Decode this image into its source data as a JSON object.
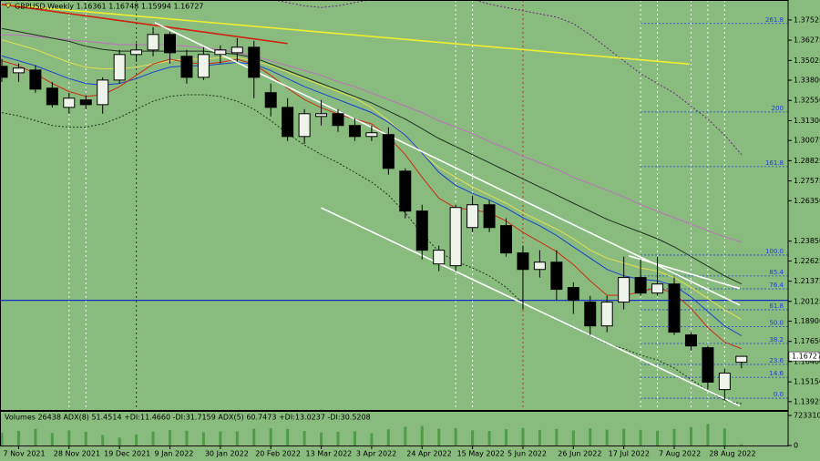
{
  "chart_data": [
    {
      "type": "candlestick",
      "title": "GBPUSD,Weekly  1.16361 1.16748 1.15994 1.16727",
      "categories": [
        null,
        "7 Nov 2021",
        null,
        null,
        "28 Nov 2021",
        null,
        null,
        "19 Dec 2021",
        null,
        null,
        "9 Jan 2022",
        null,
        null,
        "30 Jan 2022",
        null,
        null,
        "20 Feb 2022",
        null,
        null,
        "13 Mar 2022",
        null,
        null,
        "3 Apr 2022",
        null,
        null,
        "24 Apr 2022",
        null,
        null,
        "15 May 2022",
        null,
        null,
        "5 Jun 2022",
        null,
        null,
        "26 Jun 2022",
        null,
        null,
        "17 Jul 2022",
        null,
        null,
        "7 Aug 2022",
        null,
        null,
        "28 Aug 2022",
        null
      ],
      "open": [
        1.3466,
        1.3426,
        1.3443,
        1.3331,
        1.3212,
        1.3258,
        1.3229,
        1.3381,
        1.3539,
        1.3567,
        1.3663,
        1.3528,
        1.3398,
        1.3539,
        1.355,
        1.3584,
        1.3303,
        1.3212,
        1.3032,
        1.3156,
        1.3173,
        1.31,
        1.3032,
        1.3044,
        1.2818,
        1.2571,
        1.2244,
        1.2233,
        1.2469,
        1.261,
        1.2481,
        1.2312,
        1.221,
        1.2255,
        1.2098,
        1.2008,
        1.1861,
        1.2008,
        1.216,
        1.2064,
        1.212,
        1.1805,
        1.1726,
        1.1467,
        1.16361
      ],
      "high": [
        1.3511,
        1.3483,
        1.3472,
        1.337,
        1.3303,
        1.3286,
        1.3398,
        1.3567,
        1.3607,
        1.3708,
        1.368,
        1.3567,
        1.3584,
        1.3595,
        1.364,
        1.3623,
        1.3359,
        1.3269,
        1.3201,
        1.3258,
        1.3201,
        1.3145,
        1.31,
        1.3089,
        1.2835,
        1.261,
        1.2357,
        1.261,
        1.2666,
        1.2638,
        1.2526,
        1.2357,
        1.2329,
        1.2329,
        1.2131,
        1.2047,
        1.2047,
        1.2289,
        1.2272,
        1.2289,
        1.216,
        1.1822,
        1.1737,
        1.1597,
        1.16748
      ],
      "low": [
        1.337,
        1.337,
        1.3303,
        1.3212,
        1.3173,
        1.3201,
        1.3173,
        1.3359,
        1.3494,
        1.3528,
        1.3483,
        1.3359,
        1.3381,
        1.3483,
        1.3494,
        1.3269,
        1.3156,
        1.3004,
        1.2987,
        1.31,
        1.3061,
        1.3004,
        1.3004,
        1.2796,
        1.2526,
        1.2272,
        1.2199,
        1.2199,
        1.2441,
        1.2441,
        1.2289,
        1.1963,
        1.216,
        1.2019,
        1.1935,
        1.1805,
        1.1822,
        1.1963,
        1.2047,
        1.2047,
        1.1805,
        1.1709,
        1.1467,
        1.14,
        1.15994
      ],
      "close": [
        1.3398,
        1.3455,
        1.3325,
        1.3229,
        1.3269,
        1.3229,
        1.3381,
        1.3539,
        1.3567,
        1.3663,
        1.355,
        1.3398,
        1.3539,
        1.3567,
        1.3584,
        1.3398,
        1.3212,
        1.3032,
        1.3173,
        1.3173,
        1.31,
        1.3032,
        1.3055,
        1.2835,
        1.2571,
        1.2329,
        1.2329,
        1.2593,
        1.261,
        1.2469,
        1.2312,
        1.221,
        1.2255,
        1.2087,
        1.2019,
        1.1861,
        1.2008,
        1.216,
        1.2064,
        1.212,
        1.1822,
        1.1737,
        1.1513,
        1.1569,
        1.16727
      ],
      "up_color": "#eef4ea",
      "down_color": "#000000",
      "series": [
        {
          "color": "#6a2a80",
          "dash": true,
          "values": [
            null,
            null,
            null,
            null,
            null,
            null,
            null,
            null,
            null,
            null,
            null,
            null,
            null,
            null,
            null,
            null,
            1.388,
            1.386,
            1.384,
            1.383,
            1.384,
            1.386,
            1.388,
            1.39,
            1.392,
            1.393,
            1.392,
            1.39,
            1.388,
            1.385,
            1.383,
            1.381,
            1.379,
            1.377,
            1.373,
            1.366,
            1.358,
            1.35,
            1.342,
            1.336,
            1.33,
            1.322,
            1.314,
            1.304,
            1.292
          ]
        },
        {
          "color": "#203820",
          "dash": true,
          "values": [
            1.318,
            1.316,
            1.313,
            1.31,
            1.309,
            1.309,
            1.311,
            1.315,
            1.32,
            1.325,
            1.328,
            1.329,
            1.329,
            1.328,
            1.325,
            1.32,
            1.313,
            1.305,
            1.298,
            1.292,
            1.287,
            1.281,
            1.275,
            1.267,
            1.256,
            1.243,
            1.232,
            1.226,
            1.222,
            1.217,
            1.21,
            1.2,
            1.195,
            1.19,
            1.185,
            1.18,
            1.175,
            1.172,
            1.168,
            1.165,
            1.16,
            1.153,
            1.146,
            1.14,
            1.138
          ]
        },
        {
          "color": "#c070c0",
          "values": [
            1.366,
            1.366,
            1.365,
            1.364,
            1.363,
            1.362,
            1.361,
            1.36,
            1.36,
            1.36,
            1.36,
            1.359,
            1.358,
            1.357,
            1.355,
            1.353,
            1.35,
            1.347,
            1.344,
            1.341,
            1.337,
            1.334,
            1.33,
            1.326,
            1.322,
            1.318,
            1.313,
            1.309,
            1.305,
            1.3,
            1.296,
            1.291,
            1.287,
            1.283,
            1.278,
            1.274,
            1.27,
            1.266,
            1.261,
            1.257,
            1.253,
            1.249,
            1.245,
            1.241,
            1.238
          ]
        },
        {
          "color": "#203020",
          "values": [
            1.37,
            1.368,
            1.366,
            1.364,
            1.362,
            1.359,
            1.357,
            1.356,
            1.356,
            1.356,
            1.356,
            1.356,
            1.356,
            1.355,
            1.354,
            1.352,
            1.348,
            1.344,
            1.34,
            1.336,
            1.332,
            1.328,
            1.324,
            1.319,
            1.314,
            1.308,
            1.302,
            1.297,
            1.292,
            1.287,
            1.282,
            1.277,
            1.272,
            1.267,
            1.262,
            1.257,
            1.252,
            1.248,
            1.244,
            1.24,
            1.235,
            1.229,
            1.223,
            1.217,
            1.212
          ]
        },
        {
          "color": "#e4e050",
          "values": [
            1.363,
            1.36,
            1.357,
            1.353,
            1.349,
            1.346,
            1.345,
            1.345,
            1.346,
            1.348,
            1.35,
            1.351,
            1.351,
            1.352,
            1.352,
            1.35,
            1.347,
            1.343,
            1.339,
            1.335,
            1.331,
            1.327,
            1.321,
            1.313,
            1.304,
            1.293,
            1.284,
            1.278,
            1.272,
            1.267,
            1.262,
            1.256,
            1.251,
            1.246,
            1.24,
            1.233,
            1.228,
            1.225,
            1.222,
            1.22,
            1.216,
            1.21,
            1.203,
            1.196,
            1.19
          ]
        },
        {
          "color": "#1a3fd6",
          "values": [
            1.353,
            1.35,
            1.347,
            1.343,
            1.339,
            1.336,
            1.335,
            1.336,
            1.339,
            1.343,
            1.346,
            1.347,
            1.347,
            1.348,
            1.349,
            1.348,
            1.344,
            1.339,
            1.334,
            1.33,
            1.326,
            1.322,
            1.318,
            1.312,
            1.304,
            1.293,
            1.281,
            1.273,
            1.268,
            1.264,
            1.259,
            1.253,
            1.248,
            1.242,
            1.235,
            1.228,
            1.221,
            1.217,
            1.215,
            1.214,
            1.211,
            1.204,
            1.195,
            1.186,
            1.18
          ]
        },
        {
          "color": "#d02a10",
          "values": [
            1.35,
            1.347,
            1.342,
            1.336,
            1.331,
            1.328,
            1.329,
            1.334,
            1.341,
            1.348,
            1.351,
            1.349,
            1.348,
            1.349,
            1.351,
            1.348,
            1.341,
            1.333,
            1.326,
            1.321,
            1.317,
            1.314,
            1.311,
            1.303,
            1.292,
            1.278,
            1.265,
            1.259,
            1.258,
            1.256,
            1.251,
            1.244,
            1.238,
            1.232,
            1.224,
            1.214,
            1.205,
            1.205,
            1.207,
            1.21,
            1.206,
            1.197,
            1.185,
            1.176,
            1.172
          ]
        }
      ],
      "trendlines": [
        {
          "from": [
            0,
            1.3849
          ],
          "to": [
            40.9,
            1.348
          ],
          "color": "#f0ee30"
        },
        {
          "from": [
            0,
            1.3849
          ],
          "to": [
            17,
            1.3607
          ],
          "color": "#d02010"
        },
        {
          "from": [
            9.1,
            1.3736
          ],
          "to": [
            43.9,
            1.199
          ],
          "color": "#ffffff"
        },
        {
          "from": [
            19,
            1.2591
          ],
          "to": [
            43.9,
            1.1366
          ],
          "color": "#ffffff"
        },
        {
          "from": [
            37.3,
            1.2294
          ],
          "to": [
            43.9,
            1.2092
          ],
          "color": "#ffffff"
        }
      ],
      "hline": {
        "price": 1.2019,
        "color": "#1030c0"
      },
      "vlines": [
        {
          "index": 31,
          "color": "#d02010"
        },
        {
          "index": 8,
          "color": "#203020"
        },
        {
          "index": 4,
          "color": "#ffffff"
        },
        {
          "index": 5,
          "color": "#ffffff"
        },
        {
          "index": 27,
          "color": "#ffffff"
        },
        {
          "index": 28,
          "color": "#ffffff"
        },
        {
          "index": 38,
          "color": "#ffffff"
        },
        {
          "index": 39,
          "color": "#ffffff"
        },
        {
          "index": 41,
          "color": "#ffffff"
        },
        {
          "index": 42,
          "color": "#ffffff"
        },
        {
          "index": 43,
          "color": "#ffffff"
        }
      ],
      "fibo": {
        "low": 1.1414,
        "high": 1.2299,
        "from": 38,
        "color": "#2040e0",
        "levels": [
          {
            "value": 0,
            "label": "0.0"
          },
          14.6,
          23.6,
          38.2,
          {
            "value": 50,
            "label": "50.0"
          },
          61.8,
          76.4,
          85.4,
          {
            "value": 100,
            "label": "100.0"
          },
          161.8,
          200,
          261.8
        ]
      },
      "last_price": 1.16727,
      "ylim": [
        1.1341,
        1.3876
      ],
      "yticks": [
        1.37525,
        1.36275,
        1.35025,
        {
          "value": 1.338,
          "label": "1.33800"
        },
        {
          "value": 1.3255,
          "label": "1.32550"
        },
        {
          "value": 1.313,
          "label": "1.31300"
        },
        1.30075,
        1.28825,
        1.27575,
        {
          "value": 1.2635,
          "label": "1.26350"
        },
        {
          "value": 1.2385,
          "label": "1.23850"
        },
        1.22625,
        1.21375,
        1.20125,
        {
          "value": 1.189,
          "label": "1.18900"
        },
        {
          "value": 1.1765,
          "label": "1.17650"
        },
        {
          "value": 1.164,
          "label": "1.16400"
        },
        {
          "value": 1.1515,
          "label": "1.15150"
        },
        1.13925
      ],
      "grid": false
    },
    {
      "type": "bar",
      "title": "Volumes 26438  ADX(8) 51.4514 +DI:11.4660 -DI:31.7159  ADX(5) 60.7473 +DI:13.0237 -DI:30.5208",
      "values": [
        310000,
        352000,
        401000,
        298000,
        365000,
        330000,
        255000,
        190000,
        268000,
        334000,
        372000,
        356000,
        318000,
        337000,
        342000,
        405000,
        420000,
        398000,
        350000,
        312000,
        330000,
        341000,
        296000,
        388000,
        452000,
        470000,
        402000,
        418000,
        365000,
        350000,
        389000,
        424000,
        376000,
        398000,
        362000,
        410000,
        380000,
        402000,
        376000,
        355000,
        398000,
        445000,
        520000,
        412000,
        26438
      ],
      "color": "#4f9c48",
      "ylim": [
        0,
        723310
      ],
      "yticks": [
        0,
        723310
      ]
    }
  ]
}
